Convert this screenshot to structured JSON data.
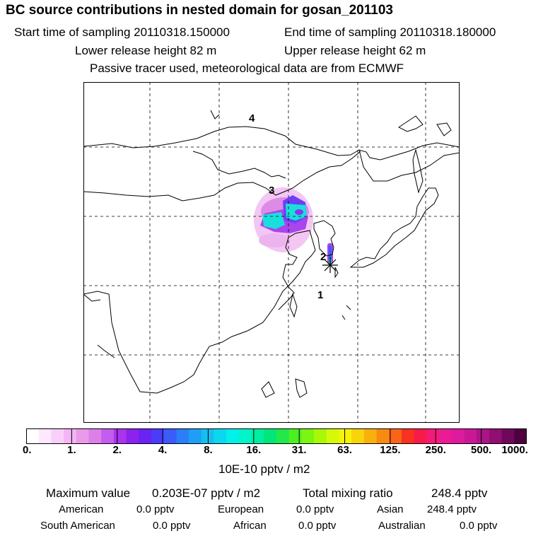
{
  "header": {
    "title": "BC  source contributions in nested domain for gosan_201103",
    "start_label": "Start time of sampling 20110318.150000",
    "end_label": "End time of sampling 20110318.180000",
    "lower_label": "Lower release height   82 m",
    "upper_label": "Upper release height   62 m",
    "note": "Passive tracer used, meteorological data are from ECMWF"
  },
  "map": {
    "region_labels": [
      "1",
      "2",
      "3",
      "4"
    ]
  },
  "colorbar": {
    "colors": [
      "#ffffff",
      "#fde8fd",
      "#f9cff9",
      "#f3b5f3",
      "#e99ae9",
      "#dc7fe9",
      "#c45cf0",
      "#aa33ee",
      "#8b22ee",
      "#6a22f5",
      "#4a3cf8",
      "#3a5cfa",
      "#2a7ef8",
      "#1e9ef4",
      "#14bef0",
      "#0ad8ee",
      "#00f0ea",
      "#00f5c8",
      "#00eea0",
      "#00e678",
      "#22e84a",
      "#4cf020",
      "#7cf510",
      "#a8f808",
      "#d4fa08",
      "#f6f208",
      "#f8d40a",
      "#f8b00c",
      "#f88a10",
      "#f86418",
      "#f8321e",
      "#f81a4a",
      "#f41a78",
      "#ec1a96",
      "#de1a9e",
      "#c81896",
      "#ac1488",
      "#900f72",
      "#70085a",
      "#50003e"
    ],
    "tick_labels": [
      "0.",
      "1.",
      "2.",
      "4.",
      "8.",
      "16.",
      "31.",
      "63.",
      "125.",
      "250.",
      "500.",
      "1000."
    ],
    "units": "10E-10 pptv / m2"
  },
  "summary": {
    "max_label": "Maximum value",
    "max_value": "0.203E-07 pptv / m2",
    "total_label": "Total mixing ratio",
    "total_value": "248.4 pptv",
    "regions": [
      {
        "name": "American",
        "value": "0.0 pptv"
      },
      {
        "name": "European",
        "value": "0.0 pptv"
      },
      {
        "name": "Asian",
        "value": "248.4 pptv"
      },
      {
        "name": "South American",
        "value": "0.0 pptv"
      },
      {
        "name": "African",
        "value": "0.0 pptv"
      },
      {
        "name": "Australian",
        "value": "0.0 pptv"
      }
    ]
  }
}
